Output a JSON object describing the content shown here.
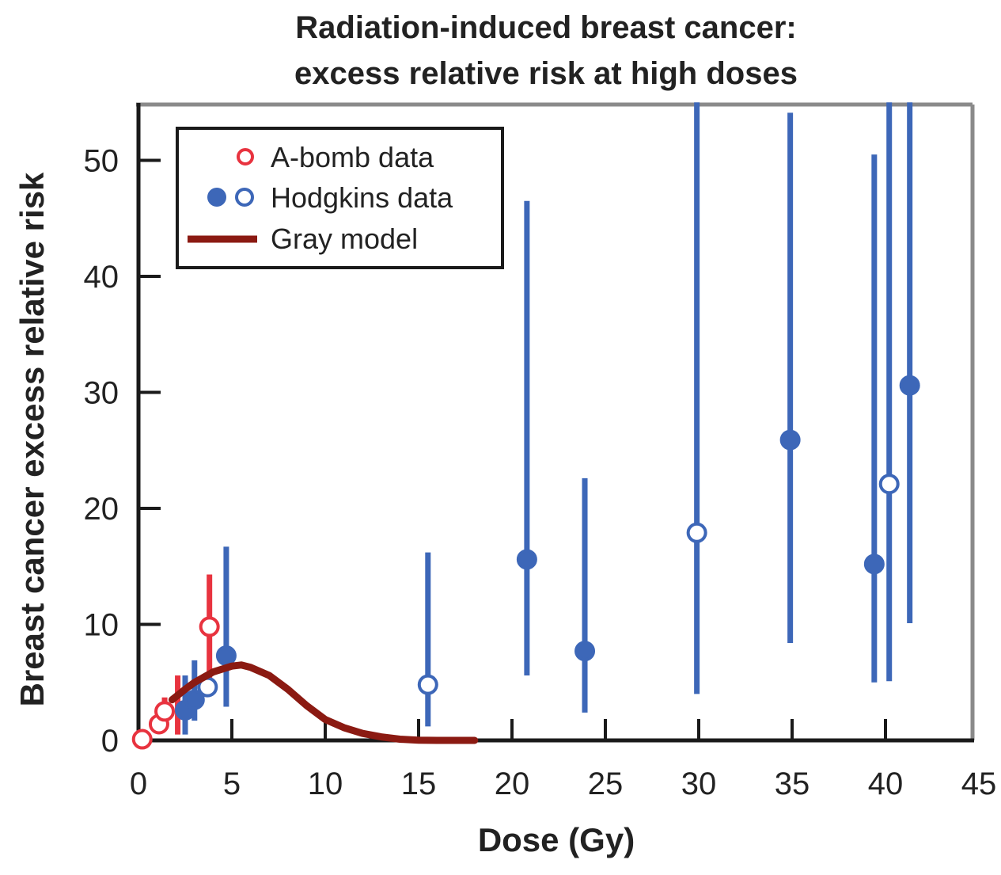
{
  "chart_data": {
    "type": "scatter",
    "title": [
      "Radiation-induced breast cancer:",
      "excess relative risk at high doses"
    ],
    "xlabel": "Dose (Gy)",
    "ylabel": "Breast cancer excess relative risk",
    "xlim": [
      0,
      45
    ],
    "ylim": [
      0,
      55
    ],
    "xticks": [
      "0",
      "5",
      "10",
      "15",
      "20",
      "25",
      "30",
      "35",
      "40",
      "45"
    ],
    "yticks": [
      "0",
      "10",
      "20",
      "30",
      "40",
      "50"
    ],
    "legend": {
      "placement": "top-left",
      "entries": [
        "A-bomb data",
        "Hodgkins data",
        "Gray model"
      ]
    },
    "colors": {
      "abomb": "#e8333f",
      "hodgkins": "#3d67b8",
      "model": "#8b1a12"
    },
    "series": [
      {
        "name": "A-bomb data",
        "marker": "open",
        "points": [
          {
            "x": 0.2,
            "y": 0.1
          },
          {
            "x": 1.1,
            "y": 1.4
          },
          {
            "x": 1.4,
            "y": 2.5,
            "lo": 1.2,
            "hi": 3.7
          },
          {
            "x": 2.1,
            "y": 2.8,
            "lo": 0.5,
            "hi": 5.6
          },
          {
            "x": 3.8,
            "y": 9.8,
            "lo": 4.6,
            "hi": 14.3
          }
        ]
      },
      {
        "name": "Hodgkins data",
        "points": [
          {
            "x": 2.5,
            "y": 2.6,
            "lo": 0.5,
            "hi": 5.6,
            "filled": true
          },
          {
            "x": 3.0,
            "y": 3.5,
            "lo": 1.7,
            "hi": 6.9,
            "filled": true
          },
          {
            "x": 3.7,
            "y": 4.6,
            "filled": false
          },
          {
            "x": 4.7,
            "y": 7.3,
            "lo": 2.9,
            "hi": 16.7,
            "filled": true
          },
          {
            "x": 15.5,
            "y": 4.8,
            "lo": 1.2,
            "hi": 16.2,
            "filled": false
          },
          {
            "x": 20.8,
            "y": 15.6,
            "lo": 5.6,
            "hi": 46.5,
            "filled": true
          },
          {
            "x": 23.9,
            "y": 7.7,
            "lo": 2.4,
            "hi": 22.6,
            "filled": true
          },
          {
            "x": 29.9,
            "y": 17.9,
            "lo": 4.0,
            "hi": 55,
            "filled": false
          },
          {
            "x": 34.9,
            "y": 25.9,
            "lo": 8.4,
            "hi": 54.1,
            "filled": true
          },
          {
            "x": 39.4,
            "y": 15.2,
            "lo": 5.0,
            "hi": 50.5,
            "filled": true
          },
          {
            "x": 40.2,
            "y": 22.1,
            "lo": 5.1,
            "hi": 55,
            "filled": false
          },
          {
            "x": 41.3,
            "y": 30.6,
            "lo": 10.1,
            "hi": 55,
            "filled": true
          }
        ]
      },
      {
        "name": "Gray model",
        "type": "line",
        "x": [
          1.8,
          2.5,
          3,
          4,
          5,
          5.5,
          6,
          7,
          8,
          9,
          10,
          11,
          12,
          13,
          14,
          15,
          16,
          18
        ],
        "y": [
          3.5,
          4.4,
          5.0,
          5.9,
          6.4,
          6.5,
          6.3,
          5.6,
          4.4,
          3.0,
          1.8,
          1.1,
          0.6,
          0.3,
          0.1,
          0.02,
          0,
          0
        ]
      }
    ]
  }
}
